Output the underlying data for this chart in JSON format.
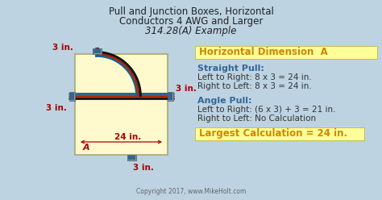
{
  "title_line1": "Pull and Junction Boxes, Horizontal",
  "title_line2": "Conductors 4 AWG and Larger",
  "title_line3": "314.28(A) Example",
  "bg_color": "#bdd3e2",
  "box_fill": "#fffacd",
  "box_edge": "#aaa870",
  "dim_color": "#aa0000",
  "header_color": "#cc8800",
  "label_color_blue": "#336699",
  "text_color_dark": "#333333",
  "highlight_fill": "#ffff99",
  "copyright": "Copyright 2017, www.MikeHolt.com",
  "horiz_dim_label": "Horizontal Dimension  A",
  "straight_pull_label": "Straight Pull:",
  "straight_pull_line1": "Left to Right: 8 x 3 = 24 in.",
  "straight_pull_line2": "Right to Left: 8 x 3 = 24 in.",
  "angle_pull_label": "Angle Pull:",
  "angle_pull_line1": "Left to Right: (6 x 3) + 3 = 21 in.",
  "angle_pull_line2": "Right to Left: No Calculation",
  "largest_calc": "Largest Calculation = 24 in.",
  "dim_3in_top": "3 in.",
  "dim_3in_right": "3 in.",
  "dim_3in_left": "3 in.",
  "dim_3in_bottom": "3 in.",
  "dim_24in": "24 in.",
  "label_A": "A",
  "wire_blue": "#1a6090",
  "wire_red": "#aa2200",
  "wire_black": "#111111",
  "connector_face": "#8899aa",
  "connector_blue": "#336688"
}
